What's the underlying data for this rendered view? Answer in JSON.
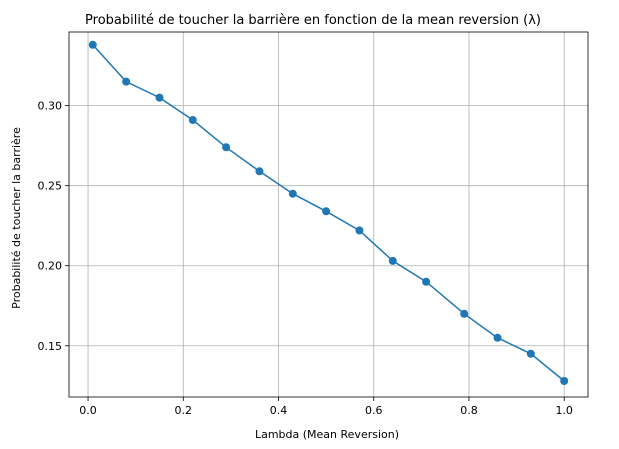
{
  "chart_data": {
    "type": "line",
    "title": "Probabilité de toucher la barrière en fonction de la mean reversion (λ)",
    "xlabel": "Lambda (Mean Reversion)",
    "ylabel": "Probabilité de toucher la barrière",
    "xlim": [
      -0.04,
      1.05
    ],
    "ylim": [
      0.118,
      0.346
    ],
    "grid": true,
    "x_ticks": [
      0.0,
      0.2,
      0.4,
      0.6,
      0.8,
      1.0
    ],
    "x_tick_labels": [
      "0.0",
      "0.2",
      "0.4",
      "0.6",
      "0.8",
      "1.0"
    ],
    "y_ticks": [
      0.15,
      0.2,
      0.25,
      0.3
    ],
    "y_tick_labels": [
      "0.15",
      "0.20",
      "0.25",
      "0.30"
    ],
    "color": "#1f77b4",
    "series": [
      {
        "x": [
          0.01,
          0.08,
          0.15,
          0.22,
          0.29,
          0.36,
          0.43,
          0.5,
          0.57,
          0.64,
          0.71,
          0.79,
          0.86,
          0.93,
          1.0
        ],
        "y": [
          0.338,
          0.315,
          0.305,
          0.291,
          0.274,
          0.259,
          0.245,
          0.234,
          0.222,
          0.203,
          0.19,
          0.17,
          0.155,
          0.145,
          0.128
        ]
      }
    ]
  }
}
